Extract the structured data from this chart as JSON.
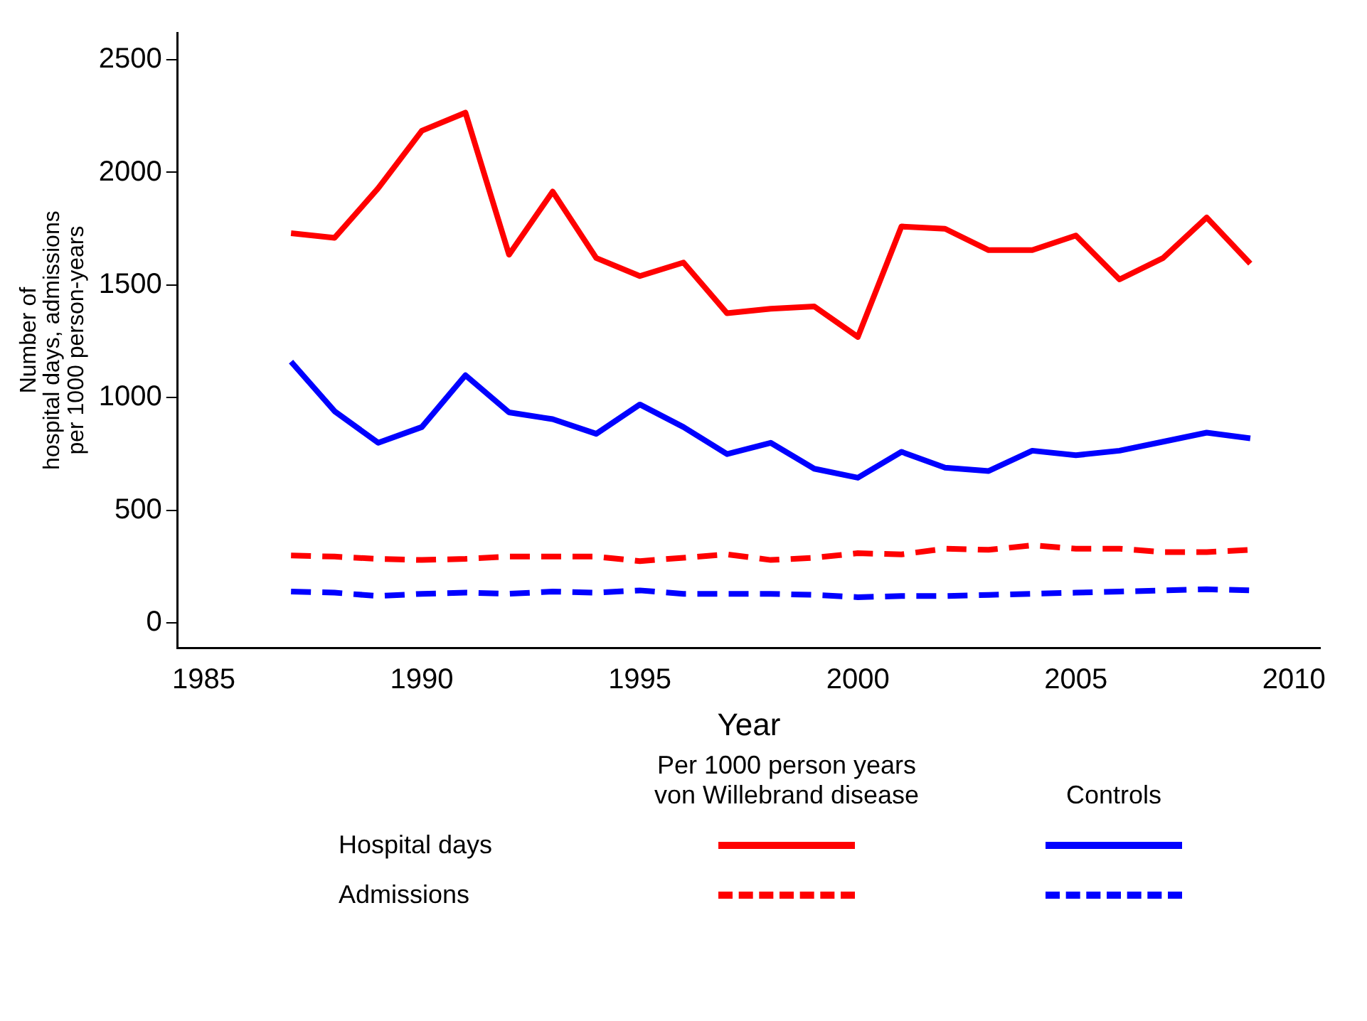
{
  "chart_data": {
    "type": "line",
    "xlabel": "Year",
    "ylabel": "Number of\nhospital days, admissions\nper 1000 person-years",
    "x": [
      1987,
      1988,
      1989,
      1990,
      1991,
      1992,
      1993,
      1994,
      1995,
      1996,
      1997,
      1998,
      1999,
      2000,
      2001,
      2002,
      2003,
      2004,
      2005,
      2006,
      2007,
      2008,
      2009
    ],
    "series": [
      {
        "color": "#ff0000",
        "line_style": "solid",
        "values": [
          1730,
          1710,
          1930,
          2185,
          2265,
          1635,
          1915,
          1620,
          1540,
          1600,
          1375,
          1395,
          1405,
          1270,
          1760,
          1750,
          1655,
          1655,
          1720,
          1525,
          1620,
          1800,
          1595
        ]
      },
      {
        "color": "#0000ff",
        "line_style": "solid",
        "values": [
          1160,
          940,
          800,
          870,
          1100,
          935,
          905,
          840,
          970,
          870,
          750,
          800,
          685,
          645,
          760,
          690,
          675,
          765,
          745,
          765,
          805,
          845,
          820
        ]
      },
      {
        "color": "#ff0000",
        "line_style": "dashed",
        "values": [
          300,
          295,
          285,
          280,
          285,
          295,
          295,
          295,
          275,
          290,
          305,
          280,
          290,
          310,
          305,
          330,
          325,
          345,
          330,
          330,
          315,
          315,
          325
        ]
      },
      {
        "color": "#0000ff",
        "line_style": "dashed",
        "values": [
          140,
          135,
          120,
          130,
          135,
          130,
          140,
          135,
          145,
          130,
          130,
          130,
          125,
          115,
          120,
          120,
          125,
          130,
          135,
          140,
          145,
          150,
          145
        ]
      }
    ],
    "xlim": [
      1984.4,
      2010.6
    ],
    "xticks": [
      1985,
      1990,
      1995,
      2000,
      2005,
      2010
    ],
    "ylim": [
      -110,
      2620
    ],
    "yticks": [
      0,
      500,
      1000,
      1500,
      2000,
      2500
    ],
    "grid": false,
    "marker": "none",
    "legend_title": "Per 1000 person years",
    "annotations": [
      "von Willebrand disease",
      "Controls",
      "Hospital days",
      "Admissions"
    ]
  }
}
